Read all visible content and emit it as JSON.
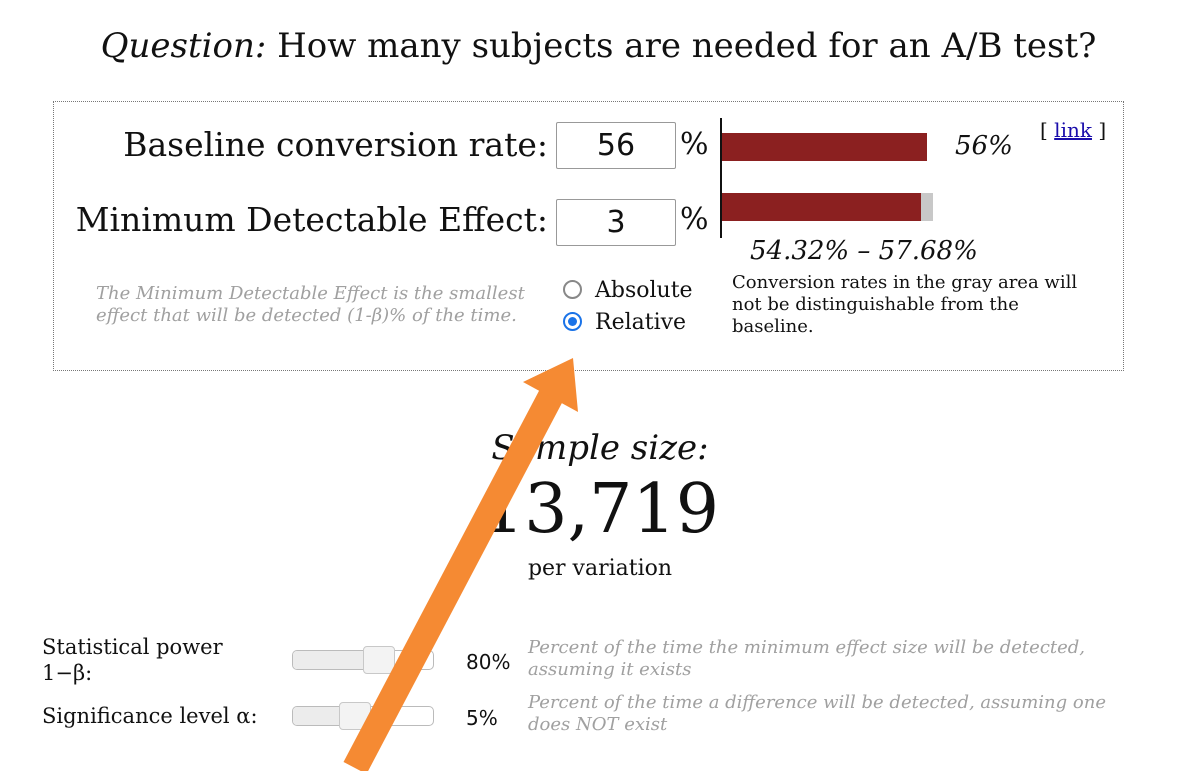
{
  "header": {
    "question_label": "Question:",
    "question_text": " How many subjects are needed for an A/B test?"
  },
  "calculator": {
    "baseline": {
      "label": "Baseline conversion rate:",
      "value": "56",
      "unit": "%"
    },
    "mde": {
      "label": "Minimum Detectable Effect:",
      "value": "3",
      "unit": "%"
    },
    "mde_note": "The Minimum Detectable Effect is the smallest effect that will be detected (1-β)% of the time.",
    "mode_options": [
      {
        "label": "Absolute",
        "selected": false
      },
      {
        "label": "Relative",
        "selected": true
      }
    ],
    "bars": {
      "baseline_value": 0.56,
      "baseline_label": "56%",
      "range_low": 0.5432,
      "range_high": 0.5768,
      "range_label": "54.32% – 57.68%",
      "bar_color": "#8b2020",
      "gray_color": "#c8c8c8"
    },
    "link": {
      "prefix": "[ ",
      "text": "link",
      "suffix": " ]"
    },
    "gray_area_note": "Conversion rates in the gray area will not be distinguishable from the baseline."
  },
  "result": {
    "title": "Sample size:",
    "value": "13,719",
    "unit": "per variation"
  },
  "parameters": {
    "power": {
      "label_line1": "Statistical power",
      "label_line2": "1−β:",
      "value": "80%",
      "level": 0.8,
      "description": "Percent of the time the minimum effect size will be detected, assuming it exists"
    },
    "significance": {
      "label": "Significance level α:",
      "value": "5%",
      "level": 0.05,
      "description": "Percent of the time a difference will be detected, assuming one does NOT exist"
    }
  },
  "annotation": {
    "arrow_color": "#f58a33"
  },
  "accent_color": "#1a73e8"
}
